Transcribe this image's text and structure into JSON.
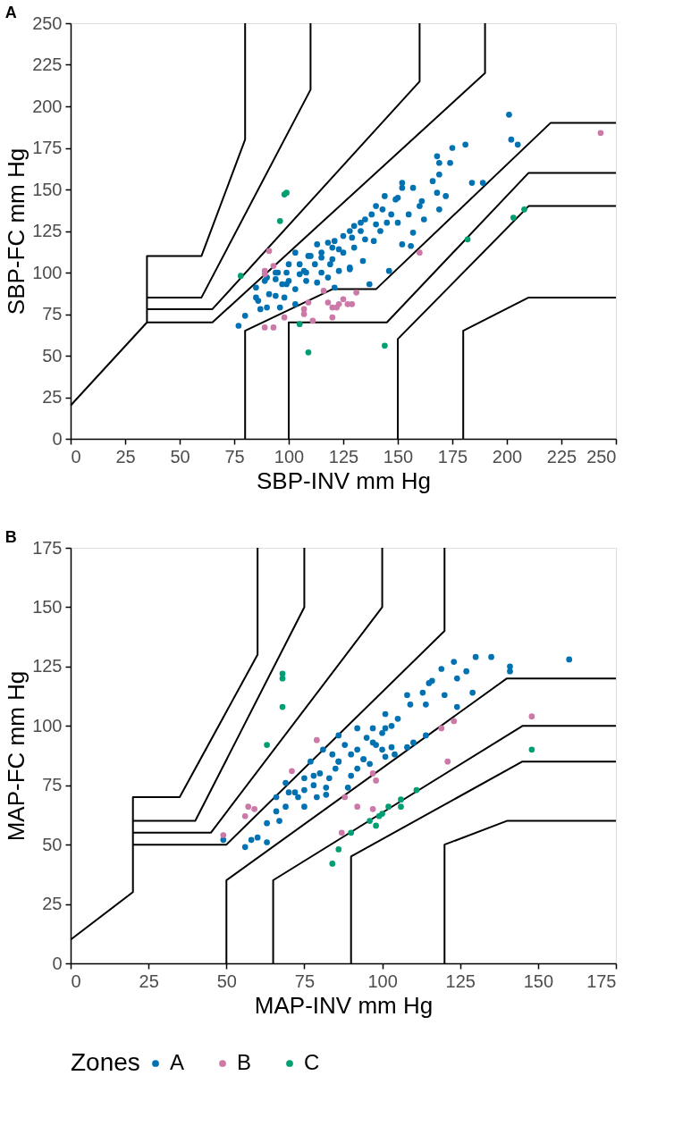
{
  "chart_data": [
    {
      "type": "scatter",
      "title": "A",
      "xlabel": "SBP-INV mm Hg",
      "ylabel": "SBP-FC mm Hg",
      "xlim": [
        0,
        250
      ],
      "ylim": [
        0,
        250
      ],
      "xticks": [
        0,
        25,
        50,
        75,
        100,
        125,
        150,
        175,
        200,
        225,
        250
      ],
      "yticks": [
        0,
        25,
        50,
        75,
        100,
        125,
        150,
        175,
        200,
        225,
        250
      ],
      "grid": false,
      "legend": false,
      "marker": "circle",
      "series": [
        {
          "type": "line",
          "marker": "none",
          "color": "#000000",
          "x": [
            0,
            35,
            35,
            60,
            80,
            80
          ],
          "values": [
            20,
            70,
            110,
            110,
            180,
            250
          ]
        },
        {
          "type": "line",
          "marker": "none",
          "color": "#000000",
          "x": [
            35,
            60,
            110,
            110
          ],
          "values": [
            85,
            85,
            210,
            250
          ]
        },
        {
          "type": "line",
          "marker": "none",
          "color": "#000000",
          "x": [
            35,
            65,
            160,
            160
          ],
          "values": [
            78,
            78,
            215,
            250
          ]
        },
        {
          "type": "line",
          "marker": "none",
          "color": "#000000",
          "x": [
            35,
            65,
            190,
            190
          ],
          "values": [
            70,
            70,
            220,
            250
          ]
        },
        {
          "type": "line",
          "marker": "none",
          "color": "#000000",
          "x": [
            80,
            80,
            120,
            140,
            220,
            250
          ],
          "values": [
            0,
            65,
            90,
            90,
            190,
            190
          ]
        },
        {
          "type": "line",
          "marker": "none",
          "color": "#000000",
          "x": [
            100,
            100,
            145,
            210,
            250
          ],
          "values": [
            0,
            70,
            70,
            160,
            160
          ]
        },
        {
          "type": "line",
          "marker": "none",
          "color": "#000000",
          "x": [
            150,
            150,
            210,
            250
          ],
          "values": [
            0,
            60,
            140,
            140
          ]
        },
        {
          "type": "line",
          "marker": "none",
          "color": "#000000",
          "x": [
            180,
            180,
            210,
            250
          ],
          "values": [
            0,
            65,
            85,
            85
          ]
        },
        {
          "color": "#0072b2",
          "x": [
            201,
            202,
            205,
            181,
            175,
            174,
            168,
            169,
            169,
            166,
            184,
            189,
            172,
            168,
            169,
            161,
            162,
            157,
            152,
            156,
            146,
            137,
            152,
            157,
            149,
            147,
            143,
            140,
            139,
            133,
            129,
            128,
            134,
            123,
            119,
            115,
            109,
            107,
            99,
            113,
            121,
            144,
            152,
            77,
            80,
            86,
            90,
            91,
            85,
            89,
            94,
            98,
            103,
            96,
            103,
            108,
            113,
            118,
            123,
            128,
            94,
            87,
            99,
            94,
            105,
            121,
            110,
            115,
            118,
            120,
            125,
            128,
            130,
            133,
            135,
            138,
            140,
            125,
            112,
            105,
            100,
            95,
            90,
            100,
            108,
            115,
            120,
            130,
            135,
            142,
            145,
            150,
            155,
            160,
            150,
            103,
            97,
            85
          ],
          "values": [
            195,
            180,
            177,
            177,
            175,
            166,
            170,
            166,
            159,
            155,
            154,
            154,
            146,
            148,
            138,
            143,
            132,
            124,
            117,
            116,
            101,
            93,
            154,
            151,
            144,
            135,
            138,
            129,
            119,
            130,
            121,
            103,
            107,
            114,
            105,
            109,
            110,
            101,
            100,
            117,
            119,
            146,
            151,
            68,
            74,
            83,
            79,
            87,
            91,
            95,
            96,
            85,
            81,
            79,
            90,
            95,
            94,
            97,
            101,
            102,
            86,
            78,
            93,
            100,
            99,
            91,
            110,
            112,
            118,
            115,
            122,
            125,
            128,
            125,
            132,
            135,
            140,
            112,
            105,
            105,
            105,
            100,
            97,
            95,
            100,
            100,
            108,
            115,
            120,
            125,
            130,
            130,
            135,
            140,
            145,
            112,
            93,
            85
          ]
        },
        {
          "color": "#cc79a7",
          "x": [
            91,
            93,
            89,
            160,
            243,
            89,
            89,
            93,
            98,
            107,
            107,
            109,
            111,
            116,
            118,
            120,
            120,
            123,
            125,
            127,
            129,
            131,
            122
          ],
          "values": [
            113,
            104,
            99,
            112,
            184,
            101,
            67,
            67,
            73,
            78,
            75,
            82,
            71,
            89,
            82,
            79,
            73,
            81,
            84,
            81,
            81,
            88,
            79
          ]
        },
        {
          "color": "#009e73",
          "x": [
            78,
            98,
            99,
            96,
            105,
            109,
            144,
            182,
            203,
            208
          ],
          "values": [
            98,
            147,
            148,
            131,
            69,
            52,
            56,
            120,
            133,
            138
          ]
        }
      ]
    },
    {
      "type": "scatter",
      "title": "B",
      "xlabel": "MAP-INV mm Hg",
      "ylabel": "MAP-FC mm Hg",
      "xlim": [
        0,
        175
      ],
      "ylim": [
        0,
        175
      ],
      "xticks": [
        0,
        25,
        50,
        75,
        100,
        125,
        150,
        175
      ],
      "yticks": [
        0,
        25,
        50,
        75,
        100,
        125,
        150,
        175
      ],
      "grid": false,
      "legend": "bottom",
      "legend_title": "Zones",
      "marker": "circle",
      "series": [
        {
          "type": "line",
          "marker": "none",
          "color": "#000000",
          "x": [
            0,
            20,
            20,
            35,
            60,
            60
          ],
          "values": [
            10,
            30,
            70,
            70,
            130,
            175
          ]
        },
        {
          "type": "line",
          "marker": "none",
          "color": "#000000",
          "x": [
            20,
            40,
            75,
            75
          ],
          "values": [
            60,
            60,
            150,
            175
          ]
        },
        {
          "type": "line",
          "marker": "none",
          "color": "#000000",
          "x": [
            20,
            45,
            100,
            100
          ],
          "values": [
            55,
            55,
            150,
            175
          ]
        },
        {
          "type": "line",
          "marker": "none",
          "color": "#000000",
          "x": [
            20,
            50,
            120,
            120
          ],
          "values": [
            50,
            50,
            140,
            175
          ]
        },
        {
          "type": "line",
          "marker": "none",
          "color": "#000000",
          "x": [
            50,
            50,
            140,
            175
          ],
          "values": [
            0,
            35,
            120,
            120
          ]
        },
        {
          "type": "line",
          "marker": "none",
          "color": "#000000",
          "x": [
            65,
            65,
            145,
            175
          ],
          "values": [
            0,
            35,
            100,
            100
          ]
        },
        {
          "type": "line",
          "marker": "none",
          "color": "#000000",
          "x": [
            90,
            90,
            145,
            175
          ],
          "values": [
            0,
            45,
            85,
            85
          ]
        },
        {
          "type": "line",
          "marker": "none",
          "color": "#000000",
          "x": [
            120,
            120,
            140,
            175
          ],
          "values": [
            0,
            50,
            60,
            60
          ]
        },
        {
          "name": "A",
          "color": "#0072b2",
          "x": [
            160,
            135,
            130,
            141,
            141,
            123,
            127,
            119,
            124,
            116,
            129,
            124,
            115,
            113,
            108,
            120,
            109,
            114,
            114,
            110,
            108,
            101,
            101,
            97,
            92,
            86,
            81,
            77,
            86,
            94,
            103,
            97,
            49,
            56,
            58,
            60,
            63,
            63,
            67,
            66,
            66,
            70,
            69,
            75,
            75,
            79,
            78,
            83,
            86,
            90,
            89,
            94,
            101,
            104,
            82,
            73,
            69,
            80,
            85,
            90,
            92,
            95,
            98,
            100,
            103,
            105,
            88,
            84,
            78,
            72,
            75,
            82,
            92,
            96,
            100
          ],
          "values": [
            128,
            129,
            129,
            125,
            123,
            127,
            123,
            124,
            120,
            119,
            114,
            108,
            118,
            114,
            113,
            113,
            109,
            109,
            96,
            93,
            91,
            105,
            99,
            99,
            99,
            96,
            90,
            85,
            85,
            86,
            91,
            93,
            52,
            49,
            52,
            53,
            51,
            59,
            60,
            64,
            70,
            72,
            76,
            66,
            73,
            70,
            79,
            78,
            85,
            79,
            74,
            86,
            87,
            88,
            71,
            70,
            66,
            80,
            82,
            88,
            90,
            95,
            92,
            97,
            100,
            103,
            92,
            88,
            75,
            72,
            78,
            74,
            82,
            84,
            90
          ]
        },
        {
          "name": "B",
          "color": "#cc79a7",
          "x": [
            79,
            119,
            123,
            148,
            121,
            71,
            97,
            98,
            57,
            59,
            56,
            49,
            88,
            92,
            97,
            87
          ],
          "values": [
            94,
            99,
            102,
            104,
            85,
            81,
            80,
            77,
            66,
            65,
            62,
            54,
            70,
            66,
            65,
            55
          ]
        },
        {
          "name": "C",
          "color": "#009e73",
          "x": [
            68,
            68,
            68,
            63,
            148,
            111,
            106,
            106,
            102,
            100,
            99,
            98,
            96,
            90,
            86,
            84
          ],
          "values": [
            122,
            120,
            108,
            92,
            90,
            73,
            69,
            66,
            66,
            63,
            62,
            58,
            60,
            55,
            48,
            42
          ]
        }
      ]
    }
  ]
}
